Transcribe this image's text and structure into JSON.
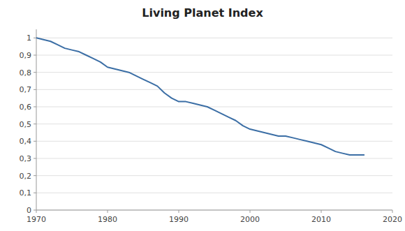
{
  "chart_data": {
    "type": "line",
    "title": "Living Planet Index",
    "x": [
      1970,
      1971,
      1972,
      1973,
      1974,
      1975,
      1976,
      1977,
      1978,
      1979,
      1980,
      1981,
      1982,
      1983,
      1984,
      1985,
      1986,
      1987,
      1988,
      1989,
      1990,
      1991,
      1992,
      1993,
      1994,
      1995,
      1996,
      1997,
      1998,
      1999,
      2000,
      2001,
      2002,
      2003,
      2004,
      2005,
      2006,
      2007,
      2008,
      2009,
      2010,
      2011,
      2012,
      2013,
      2014,
      2015,
      2016
    ],
    "values": [
      1.0,
      0.99,
      0.98,
      0.96,
      0.94,
      0.93,
      0.92,
      0.9,
      0.88,
      0.86,
      0.83,
      0.82,
      0.81,
      0.8,
      0.78,
      0.76,
      0.74,
      0.72,
      0.68,
      0.65,
      0.63,
      0.63,
      0.62,
      0.61,
      0.6,
      0.58,
      0.56,
      0.54,
      0.52,
      0.49,
      0.47,
      0.46,
      0.45,
      0.44,
      0.43,
      0.43,
      0.42,
      0.41,
      0.4,
      0.39,
      0.38,
      0.36,
      0.34,
      0.33,
      0.32,
      0.32,
      0.32
    ],
    "color": "#3B6EA5",
    "xlim": [
      1970,
      2020
    ],
    "xticks": [
      1970,
      1980,
      1990,
      2000,
      2010,
      2020
    ],
    "ylim": [
      0,
      1.05
    ],
    "yticks": [
      0,
      {
        "value": 0.1,
        "label": "0,1"
      },
      {
        "value": 0.2,
        "label": "0,2"
      },
      {
        "value": 0.3,
        "label": "0,3"
      },
      {
        "value": 0.4,
        "label": "0,4"
      },
      {
        "value": 0.5,
        "label": "0,5"
      },
      {
        "value": 0.6,
        "label": "0,6"
      },
      {
        "value": 0.7,
        "label": "0,7"
      },
      {
        "value": 0.8,
        "label": "0,8"
      },
      {
        "value": 0.9,
        "label": "0,9"
      },
      1
    ],
    "grid": true
  }
}
